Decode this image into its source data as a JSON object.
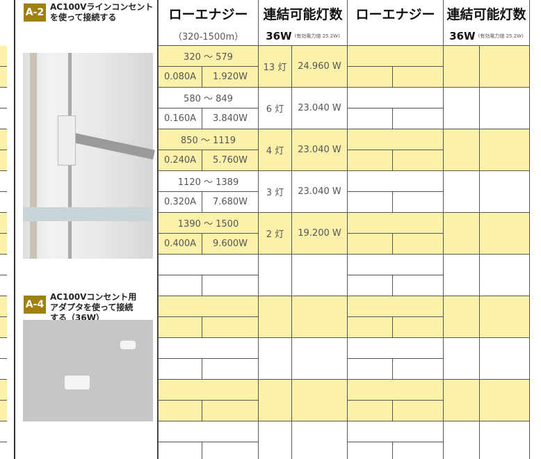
{
  "sections": [
    {
      "badge": "A-2",
      "title_lines": [
        "AC100Vラインコンセント",
        "を使って接続する"
      ]
    },
    {
      "badge": "A-4",
      "title_lines": [
        "AC100Vコンセント用",
        "アダプタを使って接続",
        "する（36W）"
      ]
    }
  ],
  "table": {
    "headers": [
      "ローエナジー",
      "連結可能灯数",
      "ローエナジー",
      "連結可能灯数"
    ],
    "range_note": "（320-1500m）",
    "wattage": "36W",
    "wattage_note": "(有効電力値 25.2W)",
    "rows": [
      {
        "range": "320 ～ 579",
        "current": "0.080A",
        "watts": "1.920W",
        "lamps": "13 灯",
        "total": "24.960 W"
      },
      {
        "range": "580 ～ 849",
        "current": "0.160A",
        "watts": "3.840W",
        "lamps": "6 灯",
        "total": "23.040 W"
      },
      {
        "range": "850 ～ 1119",
        "current": "0.240A",
        "watts": "5.760W",
        "lamps": "4 灯",
        "total": "23.040 W"
      },
      {
        "range": "1120 ～ 1389",
        "current": "0.320A",
        "watts": "7.680W",
        "lamps": "3 灯",
        "total": "23.040 W"
      },
      {
        "range": "1390 ～ 1500",
        "current": "0.400A",
        "watts": "9.600W",
        "lamps": "2 灯",
        "total": "19.200 W"
      }
    ]
  }
}
